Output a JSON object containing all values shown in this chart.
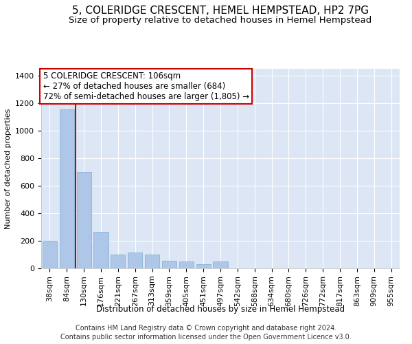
{
  "title": "5, COLERIDGE CRESCENT, HEMEL HEMPSTEAD, HP2 7PG",
  "subtitle": "Size of property relative to detached houses in Hemel Hempstead",
  "xlabel": "Distribution of detached houses by size in Hemel Hempstead",
  "ylabel": "Number of detached properties",
  "footnote1": "Contains HM Land Registry data © Crown copyright and database right 2024.",
  "footnote2": "Contains public sector information licensed under the Open Government Licence v3.0.",
  "bins": [
    "38sqm",
    "84sqm",
    "130sqm",
    "176sqm",
    "221sqm",
    "267sqm",
    "313sqm",
    "359sqm",
    "405sqm",
    "451sqm",
    "497sqm",
    "542sqm",
    "588sqm",
    "634sqm",
    "680sqm",
    "726sqm",
    "772sqm",
    "817sqm",
    "863sqm",
    "909sqm",
    "955sqm"
  ],
  "values": [
    200,
    1155,
    700,
    265,
    100,
    115,
    100,
    55,
    50,
    30,
    50,
    0,
    0,
    0,
    0,
    0,
    0,
    0,
    0,
    0,
    0
  ],
  "bar_color": "#aec6e8",
  "bar_edge_color": "#7aadd4",
  "background_color": "#dce6f5",
  "grid_color": "#ffffff",
  "fig_background": "#ffffff",
  "ylim": [
    0,
    1450
  ],
  "yticks": [
    0,
    200,
    400,
    600,
    800,
    1000,
    1200,
    1400
  ],
  "red_line_x": 1.52,
  "annotation_text": "5 COLERIDGE CRESCENT: 106sqm\n← 27% of detached houses are smaller (684)\n72% of semi-detached houses are larger (1,805) →",
  "annotation_box_color": "#ffffff",
  "annotation_box_edge": "#cc0000",
  "red_line_color": "#cc0000",
  "title_fontsize": 11,
  "subtitle_fontsize": 9.5,
  "annotation_fontsize": 8.5,
  "xlabel_fontsize": 8.5,
  "ylabel_fontsize": 8,
  "tick_fontsize": 8,
  "footnote_fontsize": 7
}
